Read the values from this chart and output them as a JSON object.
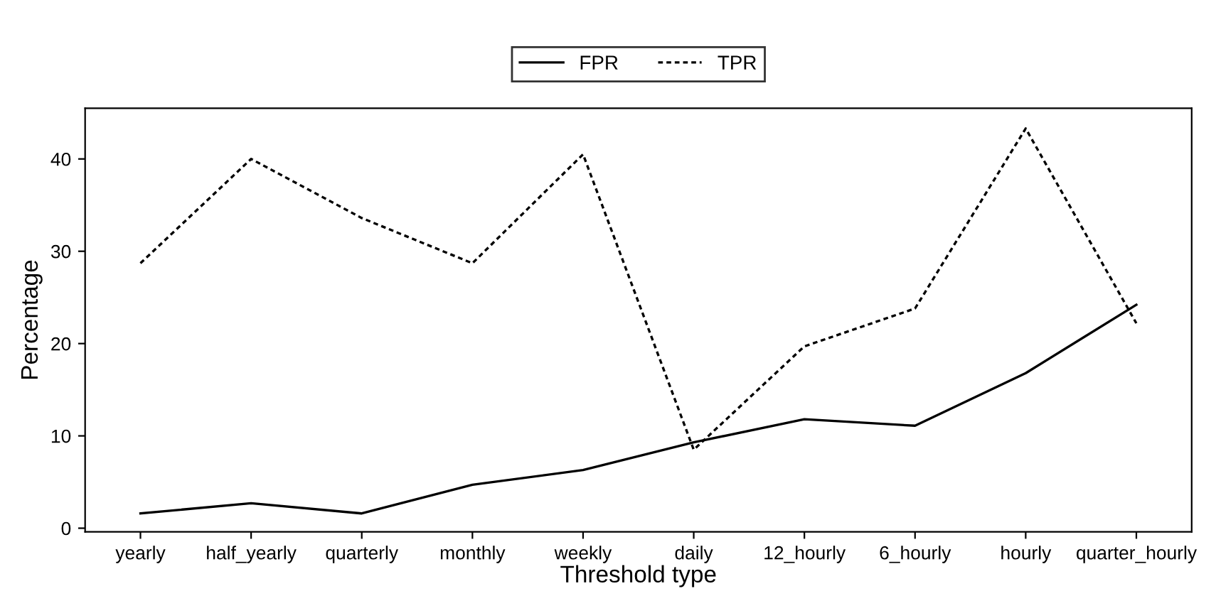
{
  "chart_data": {
    "type": "line",
    "xlabel": "Threshold type",
    "ylabel": "Percentage",
    "categories": [
      "yearly",
      "half_yearly",
      "quarterly",
      "monthly",
      "weekly",
      "daily",
      "12_hourly",
      "6_hourly",
      "hourly",
      "quarter_hourly"
    ],
    "series": [
      {
        "name": "FPR",
        "color": "#000000",
        "line_style": "solid",
        "values": [
          1.6,
          2.7,
          1.6,
          4.7,
          6.3,
          9.3,
          11.8,
          11.1,
          16.8,
          24.2
        ]
      },
      {
        "name": "TPR",
        "color": "#000000",
        "line_style": "dotted",
        "values": [
          28.7,
          40.0,
          33.6,
          28.7,
          40.5,
          8.5,
          19.7,
          23.8,
          43.3,
          22.2
        ]
      }
    ],
    "ylim": [
      -0.4,
      45.5
    ],
    "yticks": [
      0,
      10,
      20,
      30,
      40
    ],
    "grid": false,
    "legend": "top"
  }
}
